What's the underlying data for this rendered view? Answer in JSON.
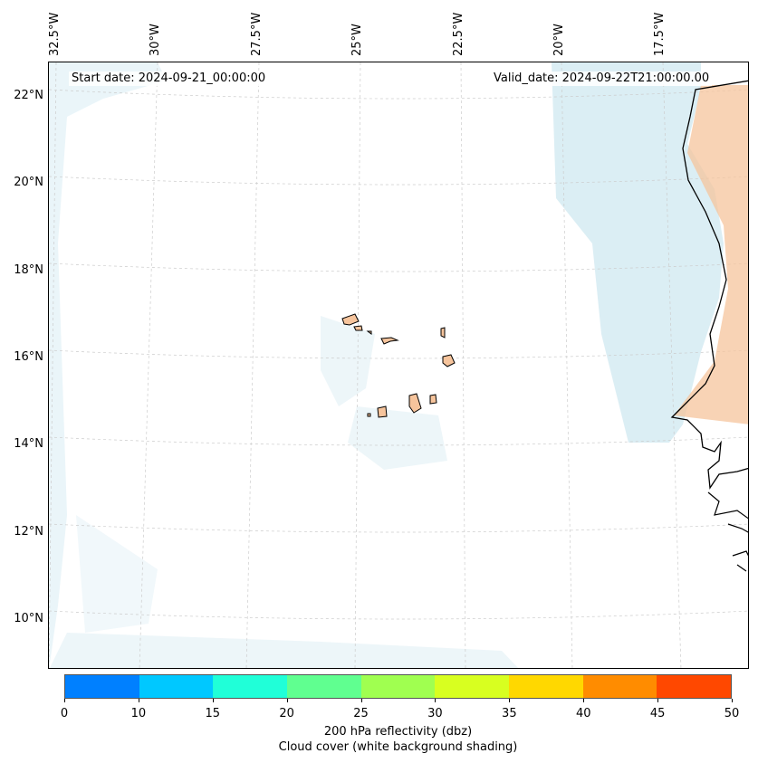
{
  "header": {
    "start_date": "Start date: 2024-09-21_00:00:00",
    "valid_date": "Valid_date: 2024-09-22T21:00:00.00"
  },
  "axes": {
    "lon_labels": [
      "32.5°W",
      "30°W",
      "27.5°W",
      "25°W",
      "22.5°W",
      "20°W",
      "17.5°W"
    ],
    "lat_labels": [
      "22°N",
      "20°N",
      "18°N",
      "16°N",
      "14°N",
      "12°N",
      "10°N"
    ]
  },
  "colorbar": {
    "ticks": [
      "0",
      "10",
      "15",
      "20",
      "25",
      "30",
      "35",
      "40",
      "45",
      "50"
    ],
    "colors": [
      "#0080ff",
      "#00c8ff",
      "#20ffd8",
      "#60ff90",
      "#a0ff50",
      "#d8ff20",
      "#ffd800",
      "#ff8c00",
      "#ff4800"
    ],
    "label": "200 hPa reflectivity (dbz)",
    "sublabel": "Cloud cover (white background shading)"
  },
  "map": {
    "region": "Cape Verde Islands and West African coast",
    "land_color": "#f6c49c",
    "cloud_color": "#cfe8f0"
  }
}
